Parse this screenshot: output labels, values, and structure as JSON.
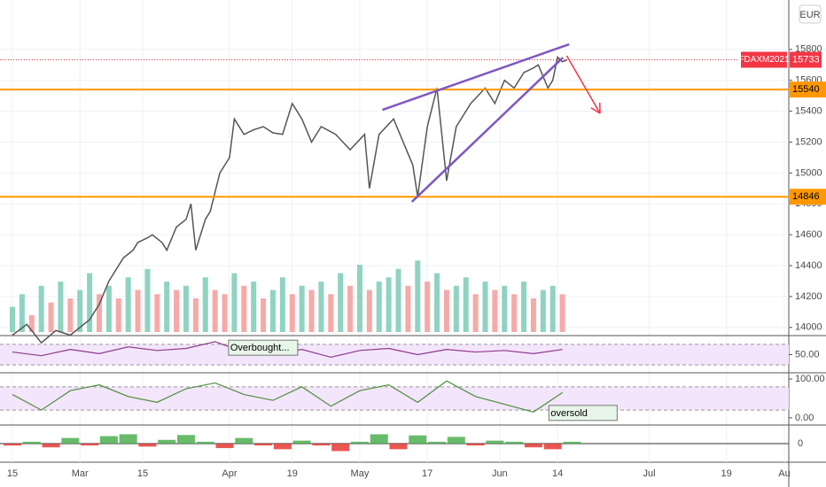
{
  "chart_data": {
    "type": "line",
    "currency": "EUR",
    "symbol": "FDAXM2021",
    "color": "#555555",
    "xlim": [
      0,
      160
    ],
    "xticks": [
      {
        "value": 0,
        "label": "15"
      },
      {
        "value": 14,
        "label": "Mar"
      },
      {
        "value": 27,
        "label": "15"
      },
      {
        "value": 45,
        "label": "Apr"
      },
      {
        "value": 58,
        "label": "19"
      },
      {
        "value": 72,
        "label": "May"
      },
      {
        "value": 86,
        "label": "17"
      },
      {
        "value": 101,
        "label": "Jun"
      },
      {
        "value": 113,
        "label": "14"
      },
      {
        "value": 132,
        "label": "Jul"
      },
      {
        "value": 148,
        "label": "19"
      },
      {
        "value": 160,
        "label": "Au"
      }
    ],
    "ylim": [
      13970,
      16120
    ],
    "yticks": [
      14000,
      14200,
      14400,
      14600,
      14800,
      15000,
      15200,
      15400,
      15600,
      15800
    ],
    "grid": true,
    "x": [
      0,
      3,
      6,
      9,
      12,
      14,
      16,
      18,
      20,
      22,
      23,
      25,
      26,
      28,
      29,
      31,
      32,
      34,
      36,
      37,
      38,
      40,
      41,
      43,
      45,
      46,
      48,
      50,
      52,
      54,
      56,
      58,
      60,
      62,
      64,
      67,
      70,
      73,
      74,
      76,
      79,
      81,
      83,
      84,
      86,
      88,
      90,
      92,
      95,
      98,
      100,
      102,
      104,
      106,
      108,
      109,
      111,
      112,
      113,
      114,
      115
    ],
    "values": [
      13950,
      14020,
      13900,
      13980,
      13950,
      14000,
      14050,
      14150,
      14300,
      14400,
      14450,
      14500,
      14550,
      14580,
      14600,
      14550,
      14500,
      14650,
      14700,
      14800,
      14500,
      14700,
      14750,
      15000,
      15100,
      15350,
      15250,
      15280,
      15300,
      15260,
      15250,
      15450,
      15350,
      15200,
      15300,
      15250,
      15150,
      15250,
      14900,
      15250,
      15350,
      15200,
      15050,
      14846,
      15300,
      15550,
      14950,
      15300,
      15450,
      15550,
      15450,
      15600,
      15550,
      15650,
      15680,
      15700,
      15550,
      15600,
      15750,
      15720,
      15733
    ],
    "last_price": {
      "value": 15733,
      "color": "#f23645"
    },
    "hlines": [
      {
        "value": 15540,
        "color": "#ff9800"
      },
      {
        "value": 14846,
        "color": "#ff9800"
      }
    ],
    "trendlines": [
      {
        "x": [
          76.7,
          115.4
        ],
        "y": [
          15409,
          15833
        ],
        "color": "#7e57c2"
      },
      {
        "x": [
          82.8,
          114.1
        ],
        "y": [
          14813,
          15747
        ],
        "color": "#7e57c2"
      }
    ],
    "arrow": {
      "x": [
        114.9,
        121.8
      ],
      "y": [
        15759,
        15386
      ],
      "color": "#f23645"
    },
    "volume": {
      "ylim": [
        0,
        100
      ],
      "up_color": "#8fd3c1",
      "down_color": "#f7a9a7",
      "x": [
        0,
        2,
        4,
        6,
        8,
        10,
        12,
        14,
        16,
        18,
        20,
        22,
        24,
        26,
        28,
        30,
        32,
        34,
        36,
        38,
        40,
        42,
        44,
        46,
        48,
        50,
        52,
        54,
        56,
        58,
        60,
        62,
        64,
        66,
        68,
        70,
        72,
        74,
        76,
        78,
        80,
        82,
        84,
        86,
        88,
        90,
        92,
        94,
        96,
        98,
        100,
        102,
        104,
        106,
        108,
        110,
        112,
        114
      ],
      "values": [
        30,
        45,
        20,
        55,
        35,
        60,
        40,
        50,
        70,
        45,
        55,
        40,
        65,
        50,
        75,
        45,
        60,
        50,
        55,
        40,
        65,
        50,
        45,
        70,
        55,
        60,
        40,
        50,
        65,
        45,
        55,
        50,
        60,
        45,
        70,
        55,
        80,
        50,
        60,
        65,
        75,
        55,
        85,
        60,
        70,
        50,
        55,
        65,
        45,
        60,
        50,
        55,
        45,
        60,
        40,
        50,
        55,
        45
      ]
    },
    "rsi": {
      "ylim": [
        20,
        80
      ],
      "yticks": [
        {
          "value": 50,
          "label": "50.00"
        }
      ],
      "bands": [
        70,
        30
      ],
      "color": "#8e3a8e",
      "x": [
        0,
        6,
        12,
        18,
        24,
        30,
        36,
        42,
        48,
        54,
        60,
        66,
        72,
        78,
        84,
        90,
        96,
        102,
        108,
        114
      ],
      "values": [
        55,
        48,
        60,
        52,
        65,
        58,
        62,
        75,
        55,
        50,
        60,
        45,
        58,
        62,
        50,
        60,
        55,
        58,
        52,
        60
      ],
      "annotation": {
        "text": "Overbought...",
        "x": 44.8,
        "y": 78
      }
    },
    "stoch": {
      "ylim": [
        -14,
        107
      ],
      "yticks": [
        {
          "value": 100,
          "label": "100.00"
        },
        {
          "value": 0,
          "label": "0.00"
        }
      ],
      "bands": [
        80,
        20
      ],
      "color": "#4c8f3a",
      "x": [
        0,
        6,
        12,
        18,
        24,
        30,
        36,
        42,
        48,
        54,
        60,
        66,
        72,
        78,
        84,
        90,
        96,
        102,
        108,
        114
      ],
      "values": [
        60,
        20,
        70,
        85,
        55,
        40,
        75,
        90,
        60,
        45,
        80,
        30,
        70,
        85,
        40,
        95,
        55,
        35,
        15,
        65
      ],
      "annotation": {
        "text": "oversold",
        "x": 111.2,
        "y": 32
      }
    },
    "macd": {
      "ylim": [
        -4.5,
        4.5
      ],
      "yticks": [
        0
      ],
      "up_color": "#4caf50",
      "down_color": "#e53935",
      "x": [
        0,
        4,
        8,
        12,
        16,
        20,
        24,
        28,
        32,
        36,
        40,
        44,
        48,
        52,
        56,
        60,
        64,
        68,
        72,
        76,
        80,
        84,
        88,
        92,
        96,
        100,
        104,
        108,
        112,
        116
      ],
      "values": [
        -0.5,
        0.5,
        -1,
        1.5,
        -0.5,
        2,
        2.5,
        -0.8,
        1,
        2.3,
        0.5,
        -1.2,
        1.5,
        -0.5,
        -1.5,
        0.8,
        -0.5,
        -2,
        0.5,
        2.5,
        -1.5,
        2.2,
        0.5,
        1.8,
        -0.5,
        0.8,
        0.5,
        -1,
        -1.5,
        0.5
      ]
    }
  }
}
